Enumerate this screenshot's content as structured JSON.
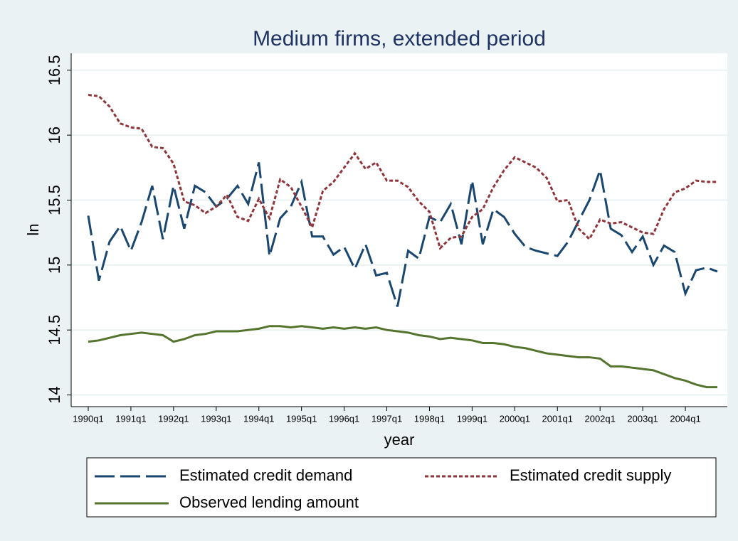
{
  "chart_data": {
    "type": "line",
    "title": "Medium firms, extended period",
    "x_label": "year",
    "y_label": "ln",
    "categories": [
      "1990q1",
      null,
      null,
      null,
      "1991q1",
      null,
      null,
      null,
      "1992q1",
      null,
      null,
      null,
      "1993q1",
      null,
      null,
      null,
      "1994q1",
      null,
      null,
      null,
      "1995q1",
      null,
      null,
      null,
      "1996q1",
      null,
      null,
      null,
      "1997q1",
      null,
      null,
      null,
      "1998q1",
      null,
      null,
      null,
      "1999q1",
      null,
      null,
      null,
      "2000q1",
      null,
      null,
      null,
      "2001q1",
      null,
      null,
      null,
      "2002q1",
      null,
      null,
      null,
      "2003q1",
      null,
      null,
      null,
      "2004q1",
      null,
      null,
      null
    ],
    "series": [
      {
        "name": "Estimated credit demand",
        "color": "#1a476f",
        "dash": "long",
        "values": [
          15.38,
          14.88,
          15.18,
          15.3,
          15.11,
          15.33,
          15.61,
          15.2,
          15.61,
          15.28,
          15.61,
          15.56,
          15.45,
          15.51,
          15.61,
          15.47,
          15.79,
          15.07,
          15.36,
          15.45,
          15.64,
          15.22,
          15.22,
          15.08,
          15.14,
          14.97,
          15.16,
          14.92,
          14.94,
          14.68,
          15.11,
          15.05,
          15.37,
          15.33,
          15.47,
          15.16,
          15.65,
          15.16,
          15.43,
          15.37,
          15.24,
          15.14,
          15.11,
          15.09,
          15.07,
          15.18,
          15.34,
          15.5,
          15.73,
          15.28,
          15.23,
          15.1,
          15.22,
          15.0,
          15.15,
          15.1,
          14.78,
          14.96,
          14.98,
          14.95
        ]
      },
      {
        "name": "Estimated credit supply",
        "color": "#90353b",
        "dash": "short",
        "values": [
          16.31,
          16.3,
          16.22,
          16.09,
          16.06,
          16.05,
          15.91,
          15.9,
          15.78,
          15.49,
          15.46,
          15.4,
          15.45,
          15.54,
          15.37,
          15.34,
          15.51,
          15.36,
          15.66,
          15.6,
          15.45,
          15.29,
          15.57,
          15.64,
          15.75,
          15.86,
          15.74,
          15.79,
          15.65,
          15.65,
          15.6,
          15.49,
          15.41,
          15.13,
          15.21,
          15.22,
          15.37,
          15.43,
          15.6,
          15.73,
          15.83,
          15.79,
          15.75,
          15.67,
          15.49,
          15.5,
          15.28,
          15.2,
          15.35,
          15.32,
          15.33,
          15.29,
          15.25,
          15.24,
          15.43,
          15.56,
          15.59,
          15.65,
          15.64,
          15.64
        ]
      },
      {
        "name": "Observed lending amount",
        "color": "#55752f",
        "dash": "solid",
        "values": [
          14.41,
          14.42,
          14.44,
          14.46,
          14.47,
          14.48,
          14.47,
          14.46,
          14.41,
          14.43,
          14.46,
          14.47,
          14.49,
          14.49,
          14.49,
          14.5,
          14.51,
          14.53,
          14.53,
          14.52,
          14.53,
          14.52,
          14.51,
          14.52,
          14.51,
          14.52,
          14.51,
          14.52,
          14.5,
          14.49,
          14.48,
          14.46,
          14.45,
          14.43,
          14.44,
          14.43,
          14.42,
          14.4,
          14.4,
          14.39,
          14.37,
          14.36,
          14.34,
          14.32,
          14.31,
          14.3,
          14.29,
          14.29,
          14.28,
          14.22,
          14.22,
          14.21,
          14.2,
          14.19,
          14.16,
          14.13,
          14.11,
          14.08,
          14.06,
          14.06
        ]
      }
    ],
    "ylim": [
      13.91,
      16.63
    ],
    "yticks": [
      14,
      14.5,
      15,
      15.5,
      16,
      16.5
    ],
    "grid": true,
    "legend": "bottom"
  }
}
